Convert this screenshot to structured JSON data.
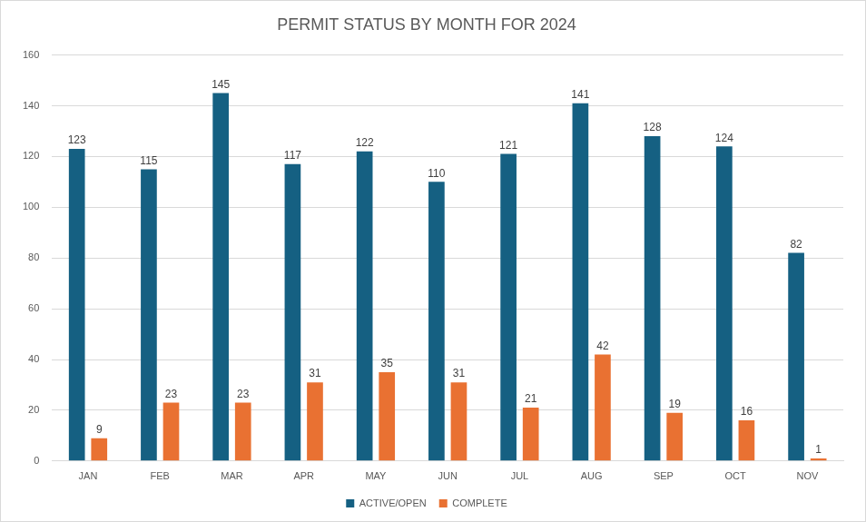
{
  "chart_data": {
    "type": "bar",
    "title": "PERMIT STATUS BY MONTH FOR 2024",
    "categories": [
      "JAN",
      "FEB",
      "MAR",
      "APR",
      "MAY",
      "JUN",
      "JUL",
      "AUG",
      "SEP",
      "OCT",
      "NOV"
    ],
    "series": [
      {
        "name": "ACTIVE/OPEN",
        "color": "#156082",
        "values": [
          123,
          115,
          145,
          117,
          122,
          110,
          121,
          141,
          128,
          124,
          82
        ]
      },
      {
        "name": "COMPLETE",
        "color": "#e97132",
        "values": [
          9,
          23,
          23,
          31,
          35,
          31,
          21,
          42,
          19,
          16,
          1
        ]
      }
    ],
    "ylim": [
      0,
      160
    ],
    "yticks": [
      0,
      20,
      40,
      60,
      80,
      100,
      120,
      140,
      160
    ],
    "grid": true,
    "legend": "bottom",
    "data_labels": true
  }
}
